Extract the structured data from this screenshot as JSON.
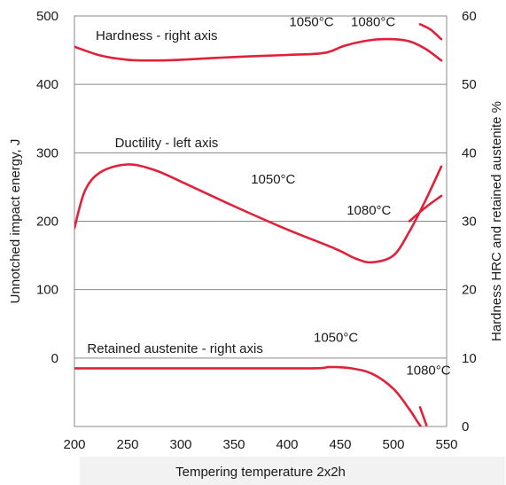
{
  "chart_data": {
    "type": "line",
    "xlabel": "Tempering temperature 2x2h",
    "ylabel_left": "Unnotched impact energy, J",
    "ylabel_right": "Hardness HRC and retained austenite %",
    "x_range": [
      200,
      550
    ],
    "x_ticks": [
      200,
      250,
      300,
      350,
      400,
      450,
      500,
      550
    ],
    "y_left_range": [
      -100,
      500
    ],
    "y_left_ticks": [
      0,
      100,
      200,
      300,
      400,
      500
    ],
    "y_right_range": [
      0,
      60
    ],
    "y_right_ticks": [
      0,
      10,
      20,
      30,
      40,
      50,
      60
    ],
    "grid": "horizontal",
    "series": [
      {
        "name": "Hardness - right axis",
        "axis": "right",
        "x": [
          200,
          225,
          250,
          275,
          300,
          350,
          400,
          435,
          455,
          480,
          500,
          515,
          530,
          545
        ],
        "y": [
          55.5,
          54.2,
          53.6,
          53.5,
          53.6,
          54.0,
          54.3,
          54.6,
          55.7,
          56.5,
          56.6,
          56.3,
          55.2,
          53.5
        ]
      },
      {
        "name": "Hardness 1080°C",
        "axis": "right",
        "x": [
          525,
          535,
          545
        ],
        "y": [
          58.8,
          58.0,
          56.6
        ]
      },
      {
        "name": "Ductility - left axis",
        "axis": "left",
        "x": [
          200,
          210,
          225,
          250,
          275,
          300,
          350,
          400,
          445,
          465,
          480,
          500,
          515,
          530,
          545
        ],
        "y": [
          190,
          245,
          272,
          283,
          275,
          258,
          222,
          188,
          160,
          145,
          140,
          150,
          185,
          230,
          280
        ]
      },
      {
        "name": "Ductility 1080°C",
        "axis": "left",
        "x": [
          515,
          530,
          545
        ],
        "y": [
          200,
          220,
          237
        ]
      },
      {
        "name": "Retained austenite - right axis",
        "axis": "right",
        "x": [
          200,
          300,
          420,
          440,
          460,
          480,
          500,
          515,
          523,
          528
        ],
        "y": [
          8.5,
          8.5,
          8.5,
          8.7,
          8.5,
          7.7,
          5.5,
          2.5,
          0.6,
          -0.5
        ]
      },
      {
        "name": "Retained austenite 1080°C",
        "axis": "right",
        "x": [
          525,
          531
        ],
        "y": [
          2.8,
          0.2
        ]
      }
    ],
    "annotations": [
      {
        "text": "Hardness - right axis",
        "x": 220,
        "y_left": 465
      },
      {
        "text": "1050°C",
        "x": 402,
        "y_left": 485
      },
      {
        "text": "1080°C",
        "x": 460,
        "y_left": 485
      },
      {
        "text": "Ductility - left axis",
        "x": 238,
        "y_left": 308
      },
      {
        "text": "1050°C",
        "x": 366,
        "y_left": 255
      },
      {
        "text": "1080°C",
        "x": 456,
        "y_left": 210
      },
      {
        "text": "Retained austenite - right axis",
        "x": 212,
        "y_left": 7.5
      },
      {
        "text": "1050°C",
        "x": 425,
        "y_left": 24
      },
      {
        "text": "1080°C",
        "x": 512,
        "y_left": -24
      }
    ]
  }
}
